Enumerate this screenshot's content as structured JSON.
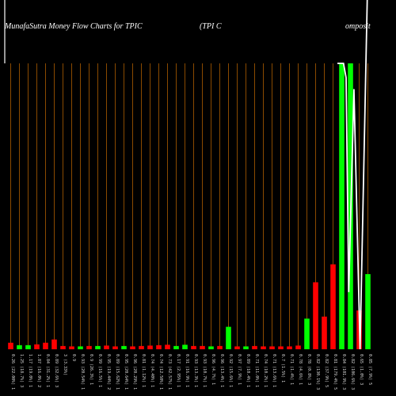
{
  "chart_data": {
    "type": "bar",
    "title": "MunafaSutra  Money Flow  Charts for TPIC",
    "subtitle_left": "(TPI C",
    "subtitle_right": "omposit",
    "bar_values": [
      1.6,
      1.0,
      1.0,
      1.2,
      1.6,
      2.4,
      0.8,
      0.7,
      0.7,
      0.8,
      0.8,
      0.9,
      0.7,
      0.8,
      0.7,
      0.8,
      0.9,
      1.0,
      1.1,
      0.8,
      1.1,
      0.8,
      0.8,
      0.7,
      0.8,
      5.5,
      0.7,
      0.7,
      0.8,
      0.7,
      0.7,
      0.7,
      0.7,
      0.9,
      7.5,
      16.4,
      8.0,
      20.8,
      70,
      70,
      9.5,
      18.4
    ],
    "bar_colors": [
      "r",
      "g",
      "g",
      "r",
      "r",
      "r",
      "r",
      "r",
      "g",
      "r",
      "g",
      "r",
      "r",
      "g",
      "r",
      "r",
      "r",
      "r",
      "r",
      "g",
      "g",
      "r",
      "r",
      "g",
      "r",
      "g",
      "r",
      "g",
      "r",
      "r",
      "r",
      "r",
      "r",
      "r",
      "g",
      "r",
      "r",
      "r",
      "g",
      "g",
      "r",
      "g"
    ],
    "ylim": [
      0,
      70
    ],
    "price_line": [
      100,
      100,
      100,
      100,
      95,
      20,
      91,
      0,
      150
    ],
    "price_line_x_index": [
      37.5,
      37.7,
      38.0,
      38.2,
      38.5,
      38.8,
      39.4,
      40.1,
      41.0
    ],
    "tick_labels": [
      "0.26 (22.00%) 1",
      "1.25 (18.7%) 3",
      "1.17 (19.0%) 1",
      "1.87 (16.0%) 2",
      "0.84 (31.2%) 1",
      "0.89 (32.6%) 3",
      "3 (3.33%)",
      "0.9",
      "0.93 (20.54%) 1",
      "0.9 (26.3%) 1",
      "0.99 (16.5%) 1",
      "0.95 (19.44%) 2",
      "0.89 (15.62%) 1",
      "0.95 (20.64%) 1",
      "0.96 (20.29%) 1",
      "0.81 (1.12%) 1",
      "0.74 (4.40%) 1",
      "0.74 (12.50%) 1",
      "0.73 (42.57%) 1",
      "0.17 (2.95%) 1",
      "0.91 (16.9%) 1",
      "0.93 (13.3%) 1",
      "0.93 (10.7%) 1",
      "0.96 (4.7%) 1",
      "0.96 (13.4%) 1",
      "0.92 (15.6%) 1",
      "0.97 (7.9%) 1",
      "0.89 (10.4%) 1",
      "0.71 (11.0%) 1",
      "0.74 (10.2%) 1",
      "0.71 (13.6%) 1",
      "0.7 (1.5%) 1",
      "0.71 (1.4%) 1",
      "0.78 (4.6%) 1",
      "0.78 (0.8%) 3",
      "0.82 (130.1%) 3",
      "0.82 (37.9%) 5",
      "0.81 (179.4%) 5",
      "0.84 (101.9%) 3",
      "0.82 (106.6%) 3",
      "0.65 (1.0%) 3",
      "0.85 (7.9%) 5"
    ],
    "colors": {
      "background": "#000000",
      "gridline": "#8a4a00",
      "positive": "#00ff00",
      "negative": "#ff0000",
      "price_line": "#ffffff"
    },
    "grid": true
  }
}
